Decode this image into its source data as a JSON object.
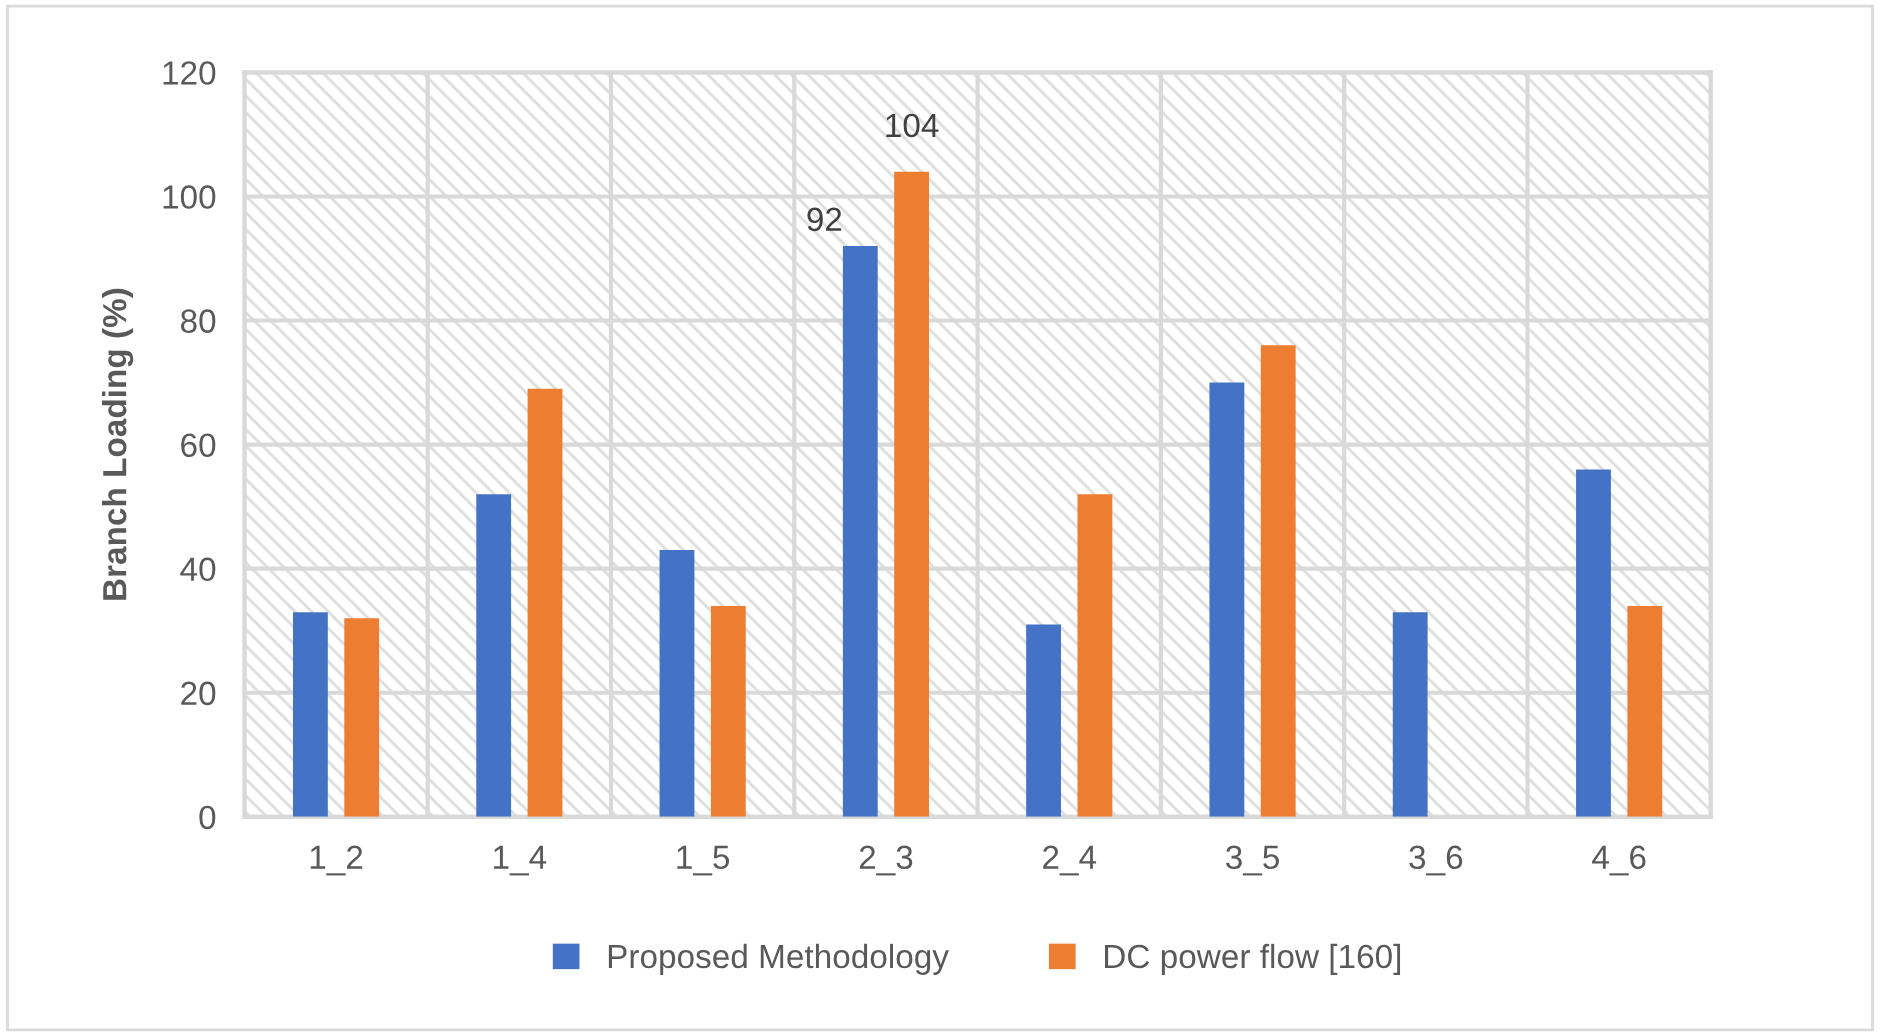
{
  "chart_data": {
    "type": "bar",
    "ylabel": "Branch Loading (%)",
    "categories": [
      "1_2",
      "1_4",
      "1_5",
      "2_3",
      "2_4",
      "3_5",
      "3_6",
      "4_6"
    ],
    "series": [
      {
        "name": "Proposed Methodology",
        "color": "#4472c4",
        "values": [
          33,
          52,
          43,
          92,
          31,
          70,
          33,
          56
        ],
        "value_labels": [
          null,
          null,
          null,
          "92",
          null,
          null,
          null,
          null
        ]
      },
      {
        "name": "DC power flow [160]",
        "color": "#ed7d31",
        "values": [
          32,
          69,
          34,
          104,
          52,
          76,
          null,
          34
        ],
        "value_labels": [
          null,
          null,
          null,
          "104",
          null,
          null,
          null,
          null
        ]
      }
    ],
    "ylim": [
      0,
      120
    ],
    "yticks": [
      0,
      20,
      40,
      60,
      80,
      100,
      120
    ],
    "grid": true,
    "legend": "bottom"
  }
}
